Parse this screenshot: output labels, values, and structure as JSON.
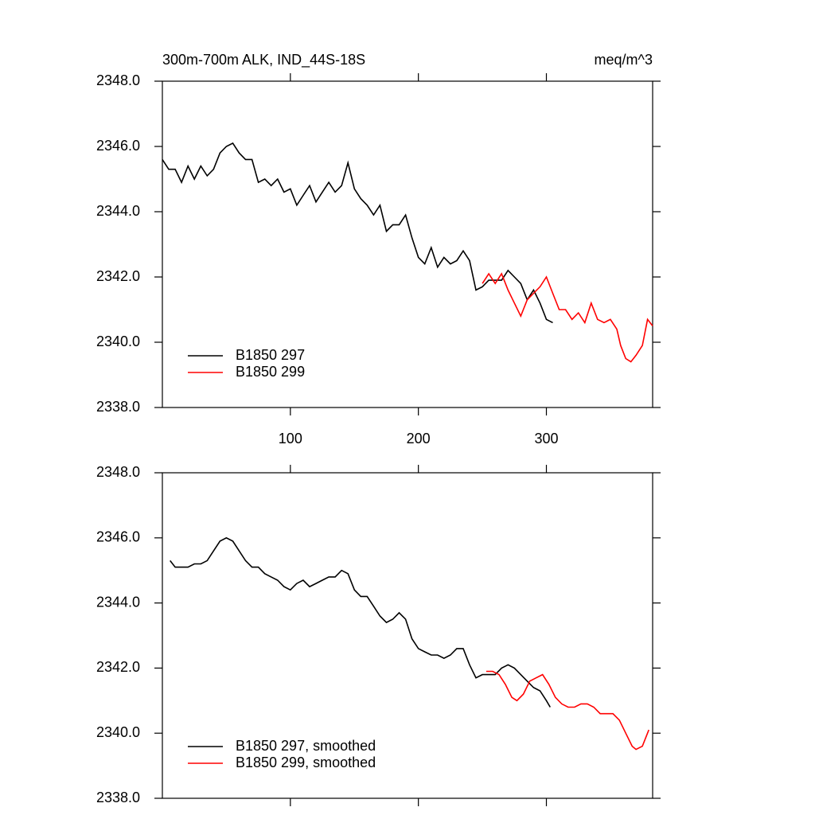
{
  "chart_data": [
    {
      "type": "line",
      "title": "300m-700m ALK, IND_44S-18S",
      "units": "meq/m^3",
      "xlim": [
        0,
        383
      ],
      "xticks": [
        100,
        200,
        300
      ],
      "ylim": [
        2338,
        2348
      ],
      "yticks": [
        {
          "value": 2338,
          "label": "2338.0"
        },
        {
          "value": 2340,
          "label": "2340.0"
        },
        {
          "value": 2342,
          "label": "2342.0"
        },
        {
          "value": 2344,
          "label": "2344.0"
        },
        {
          "value": 2346,
          "label": "2346.0"
        },
        {
          "value": 2348,
          "label": "2348.0"
        }
      ],
      "legend": "lower left",
      "series": [
        {
          "name": "B1850 297",
          "color": "#000000",
          "x": [
            0,
            5,
            10,
            15,
            20,
            25,
            30,
            35,
            40,
            45,
            50,
            55,
            60,
            65,
            70,
            75,
            80,
            85,
            90,
            95,
            100,
            105,
            110,
            115,
            120,
            125,
            130,
            135,
            140,
            145,
            150,
            155,
            160,
            165,
            170,
            175,
            180,
            185,
            190,
            195,
            200,
            205,
            210,
            215,
            220,
            225,
            230,
            235,
            240,
            245,
            250,
            255,
            260,
            265,
            270,
            275,
            280,
            285,
            290,
            295,
            300,
            305
          ],
          "values": [
            2345.6,
            2345.3,
            2345.3,
            2344.9,
            2345.4,
            2345.0,
            2345.4,
            2345.1,
            2345.3,
            2345.8,
            2346.0,
            2346.1,
            2345.8,
            2345.6,
            2345.6,
            2344.9,
            2345.0,
            2344.8,
            2345.0,
            2344.6,
            2344.7,
            2344.2,
            2344.5,
            2344.8,
            2344.3,
            2344.6,
            2344.9,
            2344.6,
            2344.8,
            2345.5,
            2344.7,
            2344.4,
            2344.2,
            2343.9,
            2344.2,
            2343.4,
            2343.6,
            2343.6,
            2343.9,
            2343.2,
            2342.6,
            2342.4,
            2342.9,
            2342.3,
            2342.6,
            2342.4,
            2342.5,
            2342.8,
            2342.5,
            2341.6,
            2341.7,
            2341.9,
            2341.9,
            2341.9,
            2342.2,
            2342.0,
            2341.8,
            2341.3,
            2341.6,
            2341.2,
            2340.7,
            2340.6
          ]
        },
        {
          "name": "B1850 299",
          "color": "#ff0000",
          "x": [
            250,
            255,
            260,
            265,
            270,
            275,
            280,
            285,
            290,
            295,
            300,
            305,
            310,
            315,
            320,
            325,
            330,
            335,
            340,
            345,
            350,
            355,
            358,
            362,
            366,
            370,
            375,
            379,
            383
          ],
          "values": [
            2341.8,
            2342.1,
            2341.8,
            2342.1,
            2341.6,
            2341.2,
            2340.8,
            2341.3,
            2341.5,
            2341.7,
            2342.0,
            2341.5,
            2341.0,
            2341.0,
            2340.7,
            2340.9,
            2340.6,
            2341.2,
            2340.7,
            2340.6,
            2340.7,
            2340.4,
            2339.9,
            2339.5,
            2339.4,
            2339.6,
            2339.9,
            2340.7,
            2340.5
          ]
        }
      ]
    },
    {
      "type": "line",
      "xlim": [
        0,
        383
      ],
      "ylim": [
        2338,
        2348
      ],
      "yticks": [
        {
          "value": 2338,
          "label": "2338.0"
        },
        {
          "value": 2340,
          "label": "2340.0"
        },
        {
          "value": 2342,
          "label": "2342.0"
        },
        {
          "value": 2344,
          "label": "2344.0"
        },
        {
          "value": 2346,
          "label": "2346.0"
        },
        {
          "value": 2348,
          "label": "2348.0"
        }
      ],
      "legend": "lower left",
      "series": [
        {
          "name": "B1850 297, smoothed",
          "color": "#000000",
          "x": [
            6,
            10,
            15,
            20,
            25,
            30,
            35,
            40,
            45,
            50,
            55,
            60,
            65,
            70,
            75,
            80,
            85,
            90,
            95,
            100,
            105,
            110,
            115,
            120,
            125,
            130,
            135,
            140,
            145,
            150,
            155,
            160,
            165,
            170,
            175,
            180,
            185,
            190,
            195,
            200,
            205,
            210,
            215,
            220,
            225,
            230,
            235,
            240,
            245,
            250,
            255,
            260,
            265,
            270,
            275,
            280,
            285,
            290,
            295,
            300,
            303
          ],
          "values": [
            2345.3,
            2345.1,
            2345.1,
            2345.1,
            2345.2,
            2345.2,
            2345.3,
            2345.6,
            2345.9,
            2346.0,
            2345.9,
            2345.6,
            2345.3,
            2345.1,
            2345.1,
            2344.9,
            2344.8,
            2344.7,
            2344.5,
            2344.4,
            2344.6,
            2344.7,
            2344.5,
            2344.6,
            2344.7,
            2344.8,
            2344.8,
            2345.0,
            2344.9,
            2344.4,
            2344.2,
            2344.2,
            2343.9,
            2343.6,
            2343.4,
            2343.5,
            2343.7,
            2343.5,
            2342.9,
            2342.6,
            2342.5,
            2342.4,
            2342.4,
            2342.3,
            2342.4,
            2342.6,
            2342.6,
            2342.1,
            2341.7,
            2341.8,
            2341.8,
            2341.8,
            2342.0,
            2342.1,
            2342.0,
            2341.8,
            2341.6,
            2341.4,
            2341.3,
            2341.0,
            2340.8
          ]
        },
        {
          "name": "B1850 299, smoothed",
          "color": "#ff0000",
          "x": [
            253,
            258,
            263,
            268,
            273,
            277,
            282,
            287,
            292,
            297,
            302,
            307,
            312,
            317,
            322,
            327,
            332,
            337,
            342,
            347,
            352,
            357,
            362,
            367,
            370,
            375,
            380
          ],
          "values": [
            2341.9,
            2341.9,
            2341.8,
            2341.5,
            2341.1,
            2341.0,
            2341.2,
            2341.6,
            2341.7,
            2341.8,
            2341.5,
            2341.1,
            2340.9,
            2340.8,
            2340.8,
            2340.9,
            2340.9,
            2340.8,
            2340.6,
            2340.6,
            2340.6,
            2340.4,
            2340.0,
            2339.6,
            2339.5,
            2339.6,
            2340.1
          ]
        }
      ]
    }
  ]
}
